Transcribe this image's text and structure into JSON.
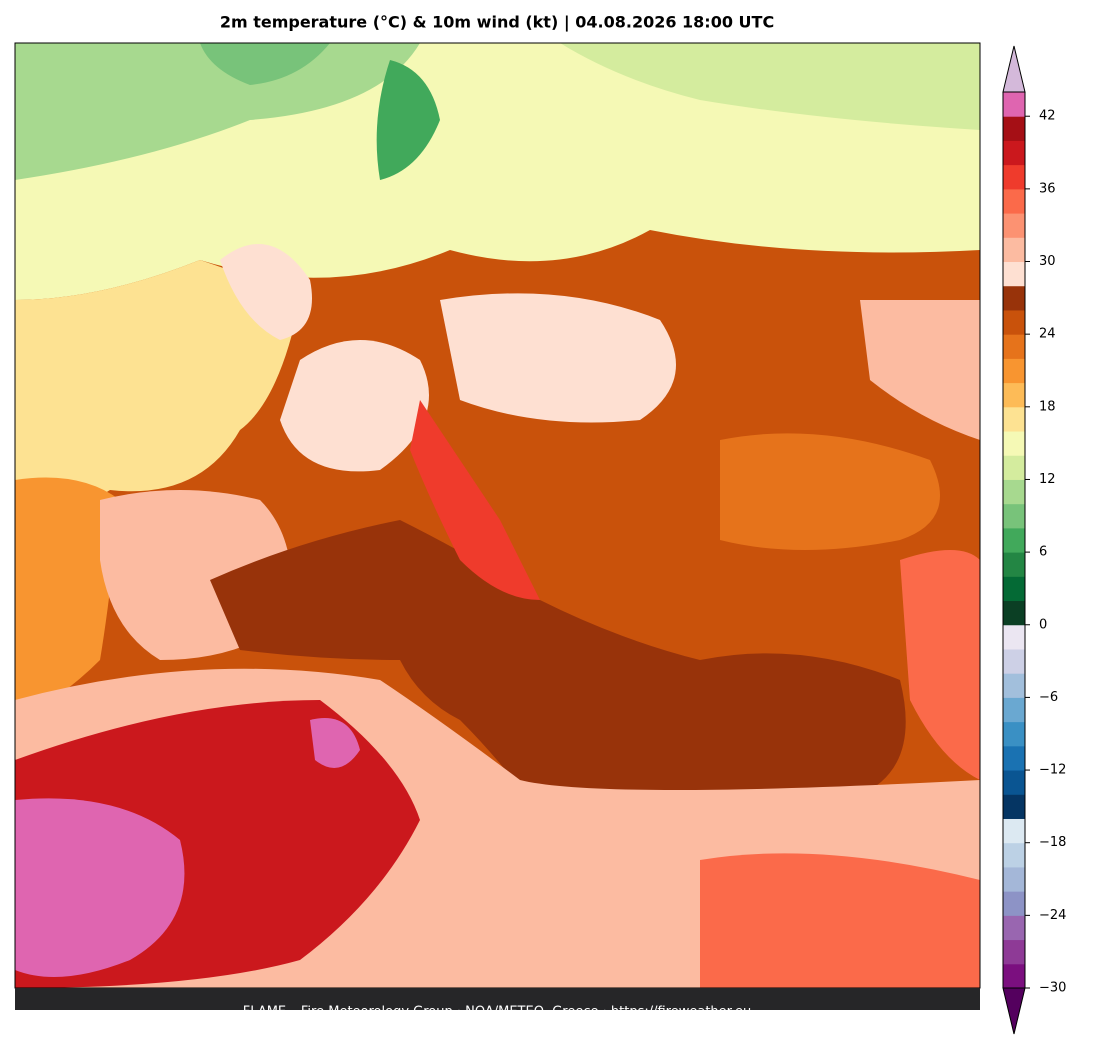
{
  "title": "2m temperature (°C) & 10m wind (kt)  |  04.08.2026 18:00 UTC",
  "footer": "FLAME – Fire Meteorology Group · NOA/METEO, Greece · https://fireweather.eu",
  "colorbar": {
    "lim": [
      -30,
      44
    ],
    "ticks": [
      {
        "value": -30,
        "label": "−30"
      },
      {
        "value": -24,
        "label": "−24"
      },
      {
        "value": -18,
        "label": "−18"
      },
      {
        "value": -12,
        "label": "−12"
      },
      {
        "value": -6,
        "label": "−6"
      },
      0,
      6,
      12,
      18,
      24,
      30,
      36,
      42
    ],
    "levels": [
      -30,
      -28,
      -26,
      -24,
      -22,
      -20,
      -18,
      -16,
      -14,
      -12,
      -10,
      -8,
      -6,
      -4,
      -2,
      0,
      2,
      4,
      6,
      8,
      10,
      12,
      14,
      16,
      18,
      20,
      22,
      24,
      26,
      28,
      30,
      32,
      34,
      36,
      38,
      40,
      42,
      44
    ],
    "colors": [
      "#7b0f7f",
      "#8e3a96",
      "#9966b0",
      "#8d93c6",
      "#a4b7d8",
      "#bcd1e5",
      "#dce9f2",
      "#053563",
      "#0a5592",
      "#1a72b2",
      "#3a90c4",
      "#6aa8d1",
      "#a2bfdc",
      "#cdd0e6",
      "#ebe6f2",
      "#0b3f24",
      "#046a35",
      "#238644",
      "#41a95b",
      "#78c37a",
      "#a7d98f",
      "#d4ec9e",
      "#f5f9b5",
      "#fde292",
      "#fdbb57",
      "#f89530",
      "#e6731b",
      "#c9520b",
      "#98330a",
      "#fee0d2",
      "#fcbba1",
      "#fc9272",
      "#fb6a4a",
      "#ef3b2c",
      "#cb181d",
      "#a50f15",
      "#df65b0"
    ],
    "under_color": "#54005e",
    "over_color": "#d4b9da"
  }
}
